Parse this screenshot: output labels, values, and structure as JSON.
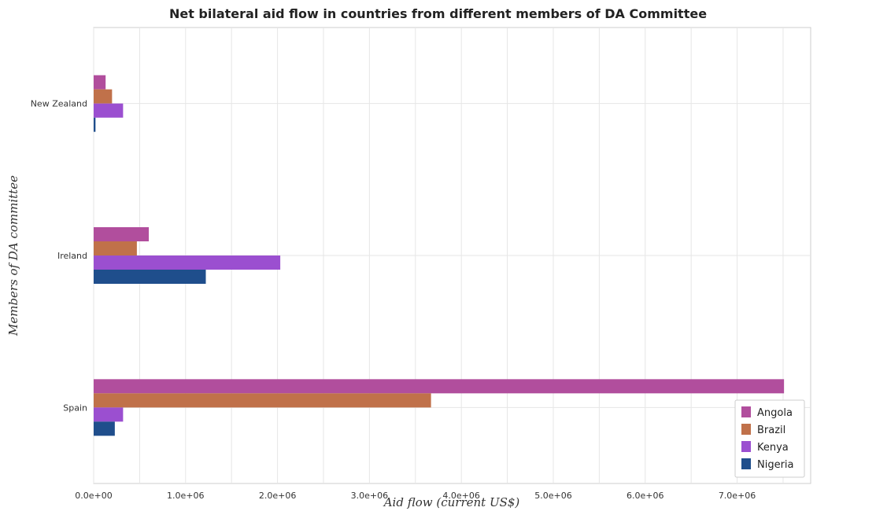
{
  "title": "Net bilateral aid flow in countries from different members of DA Committee",
  "chart_data": {
    "type": "bar",
    "orientation": "horizontal",
    "title": "Net bilateral aid flow in countries from different members of DA Committee",
    "xlabel": "Aid flow (current US$)",
    "ylabel": "Members of DA committee",
    "categories": [
      "New Zealand",
      "Ireland",
      "Spain"
    ],
    "series": [
      {
        "name": "Angola",
        "color": "#b14e9d",
        "values": [
          130000,
          600000,
          7510000
        ]
      },
      {
        "name": "Brazil",
        "color": "#c0714a",
        "values": [
          200000,
          470000,
          3670000
        ]
      },
      {
        "name": "Kenya",
        "color": "#9b4fd0",
        "values": [
          320000,
          2030000,
          320000
        ]
      },
      {
        "name": "Nigeria",
        "color": "#1f4e8c",
        "values": [
          20000,
          1220000,
          230000
        ]
      }
    ],
    "xlim": [
      0,
      7800000
    ],
    "xticks": [
      0,
      1000000,
      2000000,
      3000000,
      4000000,
      5000000,
      6000000,
      7000000
    ],
    "xtick_labels": [
      "0.0e+00",
      "1.0e+06",
      "2.0e+06",
      "3.0e+06",
      "4.0e+06",
      "5.0e+06",
      "6.0e+06",
      "7.0e+06"
    ],
    "grid": true,
    "legend_position": "bottom-right"
  }
}
